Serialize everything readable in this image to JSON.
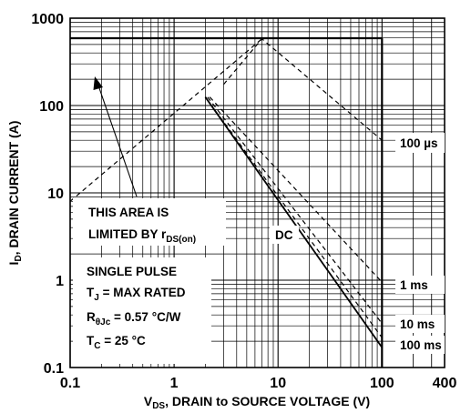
{
  "chart_data": {
    "type": "line",
    "x_scale": "log",
    "y_scale": "log",
    "xlim": [
      0.1,
      400
    ],
    "ylim": [
      0.1,
      1000
    ],
    "xlabel": {
      "a": "V",
      "sub": "DS",
      "b": ", DRAIN to SOURCE VOLTAGE (V)"
    },
    "ylabel": {
      "a": "I",
      "sub": "D",
      "b": ", DRAIN CURRENT (A)"
    },
    "x_ticks": [
      {
        "value": 0.1,
        "label": "0.1"
      },
      {
        "value": 1,
        "label": "1"
      },
      {
        "value": 10,
        "label": "10"
      },
      {
        "value": 100,
        "label": "100"
      },
      {
        "value": 400,
        "label": "400"
      }
    ],
    "y_ticks": [
      {
        "value": 0.1,
        "label": "0.1"
      },
      {
        "value": 1,
        "label": "1"
      },
      {
        "value": 10,
        "label": "10"
      },
      {
        "value": 100,
        "label": "100"
      },
      {
        "value": 1000,
        "label": "1000"
      }
    ],
    "grid": true,
    "series": [
      {
        "name": "100 µs",
        "style": "dashed",
        "points": [
          [
            3.0,
            175
          ],
          [
            7.0,
            580
          ],
          [
            100,
            40
          ]
        ]
      },
      {
        "name": "1 ms",
        "style": "dashed",
        "points": [
          [
            2.2,
            125
          ],
          [
            100,
            0.95
          ]
        ]
      },
      {
        "name": "10 ms",
        "style": "dashed",
        "points": [
          [
            2.1,
            125
          ],
          [
            100,
            0.32
          ]
        ]
      },
      {
        "name": "100 ms",
        "style": "dashed",
        "points": [
          [
            2.0,
            125
          ],
          [
            100,
            0.22
          ]
        ]
      },
      {
        "name": "DC",
        "style": "solid",
        "points": [
          [
            2.0,
            125
          ],
          [
            100,
            0.17
          ]
        ]
      }
    ],
    "limit_lines": [
      {
        "id": "rds_on",
        "style": "dashed",
        "points": [
          [
            0.1,
            8
          ],
          [
            7.0,
            580
          ]
        ]
      },
      {
        "id": "current_limit",
        "style": "solid",
        "points": [
          [
            0.1,
            590
          ],
          [
            100,
            590
          ]
        ]
      },
      {
        "id": "voltage_limit",
        "style": "solid",
        "points": [
          [
            100,
            590
          ],
          [
            100,
            0.1
          ]
        ]
      }
    ],
    "annotations": {
      "area_box": {
        "line1": "THIS AREA IS",
        "line2a": "LIMITED BY r",
        "line2sub": "DS(on)"
      },
      "conditions": {
        "line1": "SINGLE PULSE",
        "line2a": "T",
        "line2sub": "J",
        "line2b": " = MAX RATED",
        "line3a": "R",
        "line3sub": "θJc",
        "line3b": " = 0.57 °C/W",
        "line4a": "T",
        "line4sub": "C",
        "line4b": " = 25 °C"
      },
      "labels": {
        "us100": "100 µs",
        "dc": "DC",
        "ms1": "1 ms",
        "ms10": "10 ms",
        "ms100": "100 ms"
      }
    }
  }
}
